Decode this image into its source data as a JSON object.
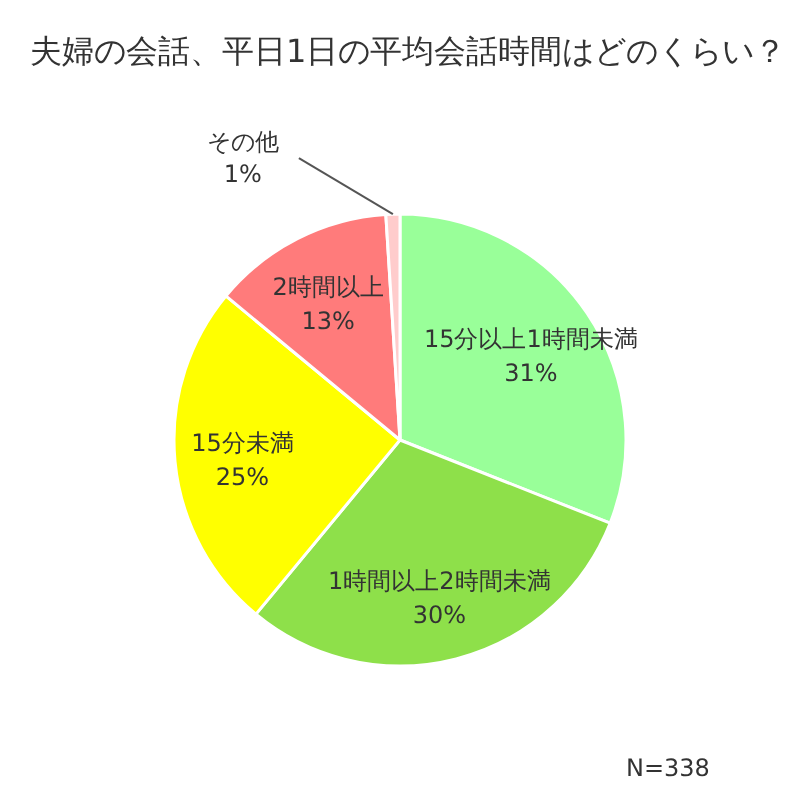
{
  "chart_data": {
    "type": "pie",
    "title": "夫婦の会話、平日1日の平均会話時間はどのくらい？",
    "categories": [
      "15分以上1時間未満",
      "1時間以上2時間未満",
      "15分未満",
      "2時間以上",
      "その他"
    ],
    "values": [
      31,
      30,
      25,
      13,
      1
    ],
    "value_labels": [
      "31%",
      "30%",
      "25%",
      "13%",
      "1%"
    ],
    "colors": [
      "#99ff99",
      "#8ee04a",
      "#ffff00",
      "#ff7b7b",
      "#ffcccc"
    ],
    "annotations": [
      "N=338"
    ]
  }
}
